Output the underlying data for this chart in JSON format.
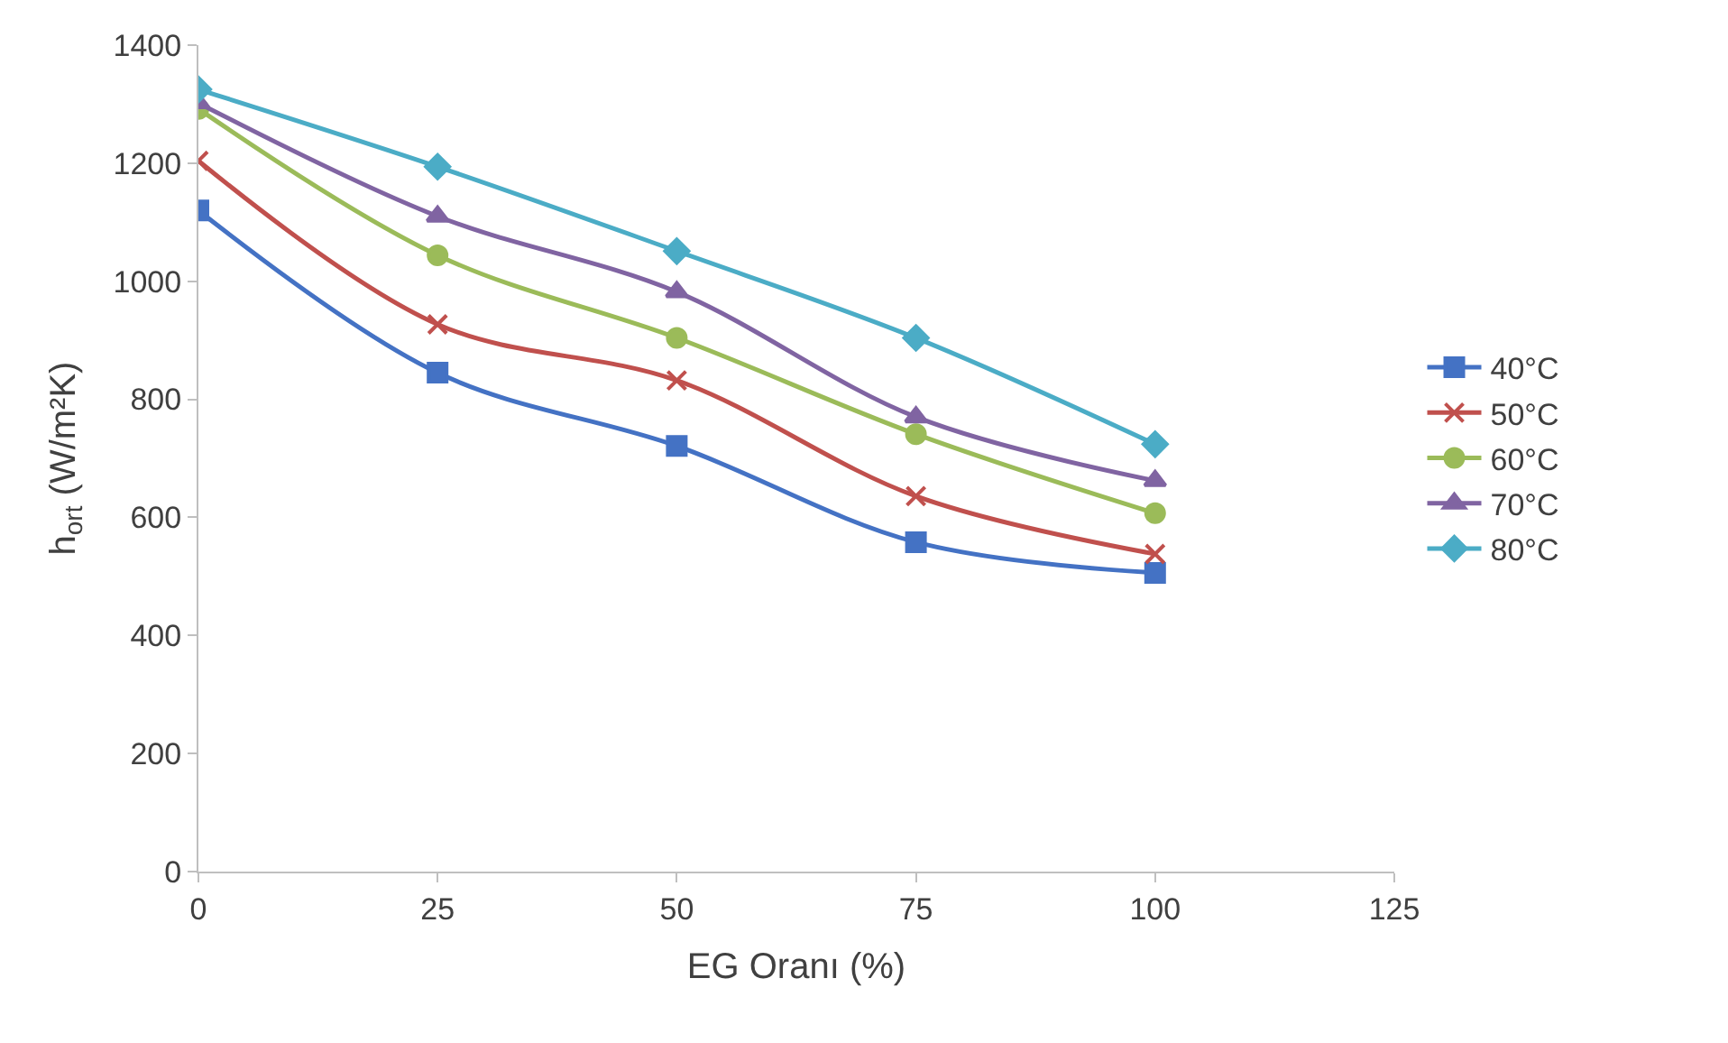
{
  "chart_data": {
    "type": "line",
    "xlabel": "EG Oranı (%)",
    "ylabel": "h$_{ort}$ (W/m²K)",
    "x": [
      0,
      25,
      50,
      75,
      100
    ],
    "xlim": [
      0,
      125
    ],
    "xticks": [
      0,
      25,
      50,
      75,
      100,
      125
    ],
    "ylim": [
      0,
      1400
    ],
    "yticks": [
      0,
      200,
      400,
      600,
      800,
      1000,
      1200,
      1400
    ],
    "grid": false,
    "legend": "right",
    "series": [
      {
        "name": "40°C",
        "color": "#4472c4",
        "marker": "square",
        "values": [
          1120,
          845,
          721,
          558,
          506
        ]
      },
      {
        "name": "50°C",
        "color": "#c0504d",
        "marker": "cross",
        "values": [
          1204,
          927,
          832,
          636,
          538
        ]
      },
      {
        "name": "60°C",
        "color": "#9bbb59",
        "marker": "circle",
        "values": [
          1292,
          1044,
          904,
          741,
          607
        ]
      },
      {
        "name": "70°C",
        "color": "#8064a2",
        "marker": "triangle",
        "values": [
          1302,
          1110,
          982,
          770,
          662
        ]
      },
      {
        "name": "80°C",
        "color": "#4bacc6",
        "marker": "diamond",
        "values": [
          1325,
          1194,
          1051,
          904,
          724
        ]
      }
    ]
  }
}
